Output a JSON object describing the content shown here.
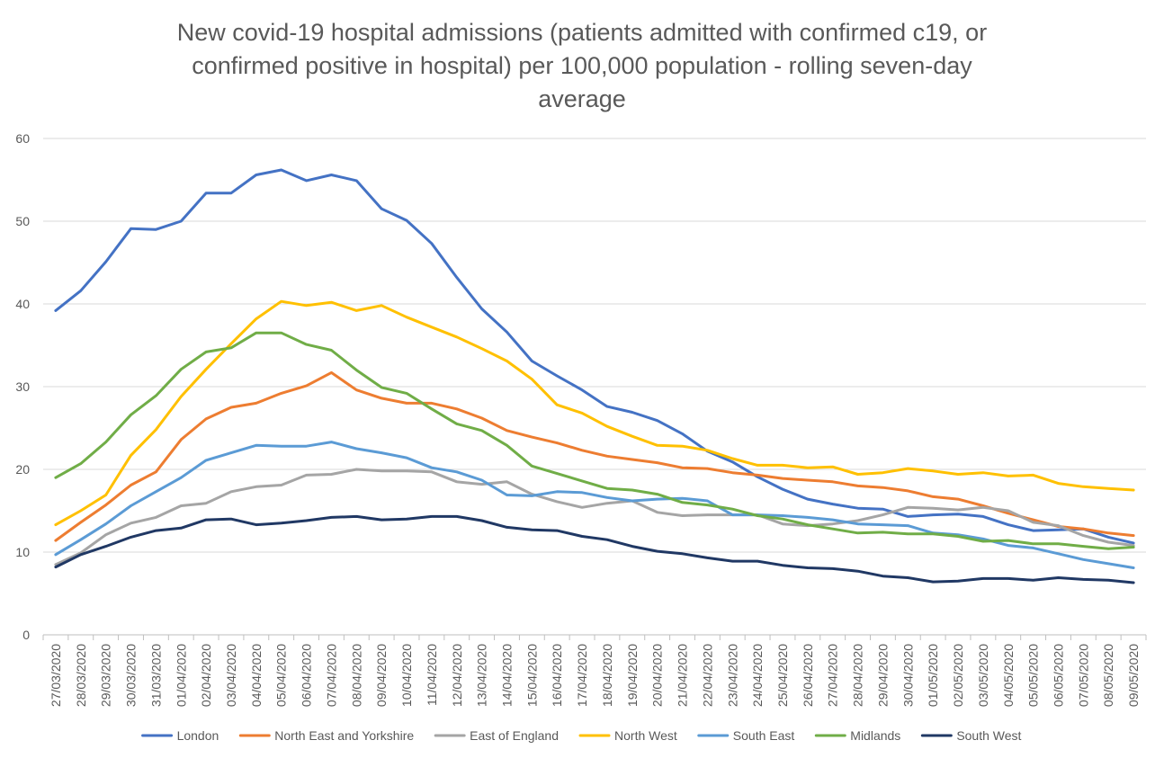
{
  "chart_data": {
    "type": "line",
    "title_lines": [
      "New covid-19 hospital admissions (patients admitted with confirmed c19, or",
      "confirmed positive in hospital) per 100,000 population - rolling seven-day",
      "average"
    ],
    "xlabel": "",
    "ylabel": "",
    "ylim": [
      0,
      60
    ],
    "yticks": [
      0,
      10,
      20,
      30,
      40,
      50,
      60
    ],
    "grid": true,
    "legend_position": "bottom",
    "categories": [
      "27/03/2020",
      "28/03/2020",
      "29/03/2020",
      "30/03/2020",
      "31/03/2020",
      "01/04/2020",
      "02/04/2020",
      "03/04/2020",
      "04/04/2020",
      "05/04/2020",
      "06/04/2020",
      "07/04/2020",
      "08/04/2020",
      "09/04/2020",
      "10/04/2020",
      "11/04/2020",
      "12/04/2020",
      "13/04/2020",
      "14/04/2020",
      "15/04/2020",
      "16/04/2020",
      "17/04/2020",
      "18/04/2020",
      "19/04/2020",
      "20/04/2020",
      "21/04/2020",
      "22/04/2020",
      "23/04/2020",
      "24/04/2020",
      "25/04/2020",
      "26/04/2020",
      "27/04/2020",
      "28/04/2020",
      "29/04/2020",
      "30/04/2020",
      "01/05/2020",
      "02/05/2020",
      "03/05/2020",
      "04/05/2020",
      "05/05/2020",
      "06/05/2020",
      "07/05/2020",
      "08/05/2020",
      "09/05/2020"
    ],
    "series": [
      {
        "name": "London",
        "color": "#4472C4",
        "values": [
          39.2,
          41.6,
          45.1,
          49.1,
          49.0,
          50.0,
          53.4,
          53.4,
          55.6,
          56.2,
          54.9,
          55.6,
          54.9,
          51.5,
          50.1,
          47.3,
          43.2,
          39.4,
          36.6,
          33.1,
          31.3,
          29.6,
          27.6,
          26.9,
          25.9,
          24.3,
          22.2,
          20.9,
          19.1,
          17.6,
          16.4,
          15.8,
          15.3,
          15.2,
          14.3,
          14.5,
          14.6,
          14.3,
          13.3,
          12.6,
          12.7,
          12.8,
          11.8,
          11.1
        ]
      },
      {
        "name": "North East and Yorkshire",
        "color": "#ED7D31",
        "values": [
          11.4,
          13.6,
          15.7,
          18.1,
          19.7,
          23.6,
          26.1,
          27.5,
          28.0,
          29.2,
          30.1,
          31.7,
          29.6,
          28.6,
          28.0,
          28.0,
          27.3,
          26.2,
          24.7,
          23.9,
          23.2,
          22.3,
          21.6,
          21.2,
          20.8,
          20.2,
          20.1,
          19.6,
          19.3,
          18.9,
          18.7,
          18.5,
          18.0,
          17.8,
          17.4,
          16.7,
          16.4,
          15.6,
          14.7,
          13.9,
          13.1,
          12.8,
          12.3,
          12.0
        ]
      },
      {
        "name": "East of England",
        "color": "#A5A5A5",
        "values": [
          8.5,
          9.9,
          12.1,
          13.5,
          14.2,
          15.6,
          15.9,
          17.3,
          17.9,
          18.1,
          19.3,
          19.4,
          20.0,
          19.8,
          19.8,
          19.7,
          18.5,
          18.2,
          18.5,
          17.0,
          16.1,
          15.4,
          15.9,
          16.2,
          14.8,
          14.4,
          14.5,
          14.5,
          14.5,
          13.4,
          13.2,
          13.4,
          13.8,
          14.5,
          15.4,
          15.3,
          15.1,
          15.4,
          15.0,
          13.6,
          13.2,
          12.0,
          11.2,
          10.8
        ]
      },
      {
        "name": "North West",
        "color": "#FFC000",
        "values": [
          13.3,
          15.0,
          16.9,
          21.7,
          24.8,
          28.8,
          32.1,
          35.2,
          38.2,
          40.3,
          39.8,
          40.2,
          39.2,
          39.8,
          38.4,
          37.2,
          36.0,
          34.6,
          33.1,
          30.9,
          27.8,
          26.8,
          25.2,
          24.0,
          22.9,
          22.8,
          22.3,
          21.3,
          20.5,
          20.5,
          20.2,
          20.3,
          19.4,
          19.6,
          20.1,
          19.8,
          19.4,
          19.6,
          19.2,
          19.3,
          18.3,
          17.9,
          17.7,
          17.5
        ]
      },
      {
        "name": "South East",
        "color": "#5B9BD5",
        "values": [
          9.7,
          11.5,
          13.4,
          15.6,
          17.3,
          19.0,
          21.1,
          22.0,
          22.9,
          22.8,
          22.8,
          23.3,
          22.5,
          22.0,
          21.4,
          20.2,
          19.7,
          18.7,
          16.9,
          16.8,
          17.3,
          17.2,
          16.6,
          16.2,
          16.4,
          16.5,
          16.2,
          14.5,
          14.5,
          14.4,
          14.2,
          13.9,
          13.4,
          13.3,
          13.2,
          12.3,
          12.1,
          11.6,
          10.8,
          10.5,
          9.8,
          9.1,
          8.6,
          8.1
        ]
      },
      {
        "name": "Midlands",
        "color": "#70AD47",
        "values": [
          19.0,
          20.7,
          23.3,
          26.6,
          28.9,
          32.1,
          34.2,
          34.7,
          36.5,
          36.5,
          35.1,
          34.4,
          32.0,
          29.9,
          29.2,
          27.3,
          25.5,
          24.7,
          22.9,
          20.4,
          19.5,
          18.6,
          17.7,
          17.5,
          17.0,
          16.0,
          15.7,
          15.2,
          14.4,
          14.0,
          13.3,
          12.8,
          12.3,
          12.4,
          12.2,
          12.2,
          11.9,
          11.3,
          11.4,
          11.0,
          11.0,
          10.7,
          10.4,
          10.6
        ]
      },
      {
        "name": "South West",
        "color": "#203864",
        "values": [
          8.2,
          9.7,
          10.7,
          11.8,
          12.6,
          12.9,
          13.9,
          14.0,
          13.3,
          13.5,
          13.8,
          14.2,
          14.3,
          13.9,
          14.0,
          14.3,
          14.3,
          13.8,
          13.0,
          12.7,
          12.6,
          11.9,
          11.5,
          10.7,
          10.1,
          9.8,
          9.3,
          8.9,
          8.9,
          8.4,
          8.1,
          8.0,
          7.7,
          7.1,
          6.9,
          6.4,
          6.5,
          6.8,
          6.8,
          6.6,
          6.9,
          6.7,
          6.6,
          6.3
        ]
      }
    ]
  }
}
